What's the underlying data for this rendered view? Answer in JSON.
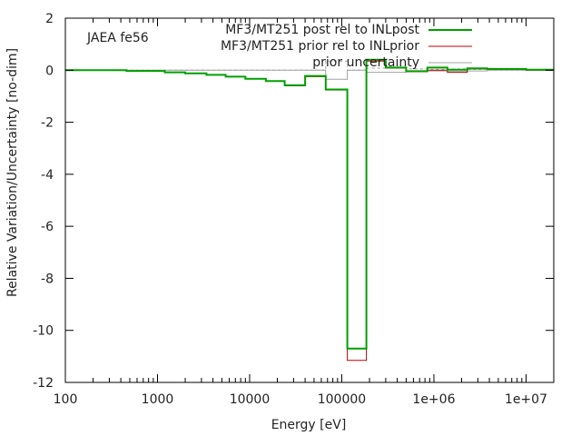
{
  "chart_data": {
    "type": "line",
    "step": true,
    "annotation": "JAEA fe56",
    "xlabel": "Energy [eV]",
    "ylabel": "Relative Variation/Uncertainty [no-dim]",
    "xscale": "log",
    "xlim": [
      100,
      20000000
    ],
    "ylim": [
      -12,
      2
    ],
    "xticks": [
      100,
      1000,
      10000,
      100000,
      1000000,
      10000000
    ],
    "xtick_labels": [
      "100",
      "1000",
      "10000",
      "100000",
      "1e+06",
      "1e+07"
    ],
    "yticks": [
      2,
      0,
      -2,
      -4,
      -6,
      -8,
      -10,
      -12
    ],
    "ytick_labels": [
      "2",
      "0",
      "-2",
      "-4",
      "-6",
      "-8",
      "-10",
      "-12"
    ],
    "grid": false,
    "legend_position": "top-right",
    "series": [
      {
        "name": "MF3/MT251 post rel to INLpost",
        "color": "#00a000",
        "edges": [
          100,
          460,
          1200,
          2000,
          3400,
          5500,
          9000,
          15000,
          24000,
          40000,
          67000,
          115000,
          185000,
          300000,
          500000,
          850000,
          1400000,
          2300000,
          3800000,
          10000000,
          20000000
        ],
        "values": [
          0.0,
          -0.03,
          -0.08,
          -0.12,
          -0.18,
          -0.25,
          -0.33,
          -0.42,
          -0.58,
          -0.22,
          -0.74,
          -10.7,
          0.4,
          0.1,
          -0.04,
          0.1,
          0.02,
          0.07,
          0.05,
          0.02
        ]
      },
      {
        "name": "MF3/MT251 prior rel to INLprior",
        "color": "#c00000",
        "edges": [
          100,
          460,
          1200,
          2000,
          3400,
          5500,
          9000,
          15000,
          24000,
          40000,
          67000,
          115000,
          185000,
          300000,
          500000,
          850000,
          1400000,
          2300000,
          3800000,
          10000000,
          20000000
        ],
        "values": [
          0.0,
          -0.03,
          -0.08,
          -0.12,
          -0.18,
          -0.25,
          -0.33,
          -0.42,
          -0.6,
          -0.25,
          -0.76,
          -11.15,
          0.35,
          0.08,
          -0.06,
          0.0,
          -0.08,
          0.05,
          0.03,
          0.0
        ]
      },
      {
        "name": "prior uncertainty",
        "color": "#a0a0a0",
        "edges": [
          100,
          460,
          1200,
          2000,
          3400,
          5500,
          9000,
          15000,
          24000,
          40000,
          67000,
          115000,
          185000,
          300000,
          500000,
          850000,
          1400000,
          2300000,
          3800000,
          10000000,
          20000000
        ],
        "values": [
          0.0,
          0.0,
          0.0,
          0.0,
          0.0,
          0.0,
          0.0,
          0.0,
          0.0,
          0.0,
          -0.35,
          0.0,
          -0.08,
          -0.08,
          -0.05,
          -0.03,
          -0.05,
          -0.03,
          0.0,
          0.0
        ]
      },
      {
        "name": "",
        "color": "#a0a0a0",
        "dashed": true,
        "edges": [
          100,
          460,
          1200,
          2000,
          3400,
          5500,
          9000,
          15000,
          24000,
          40000,
          67000,
          115000,
          185000,
          300000,
          500000,
          850000,
          1400000,
          2300000,
          3800000,
          10000000,
          20000000
        ],
        "values": [
          0.0,
          0.0,
          0.0,
          0.0,
          0.0,
          0.0,
          0.0,
          0.0,
          0.0,
          0.0,
          0.35,
          0.0,
          0.08,
          0.08,
          0.05,
          0.03,
          0.05,
          0.03,
          0.0,
          0.0
        ]
      }
    ]
  }
}
